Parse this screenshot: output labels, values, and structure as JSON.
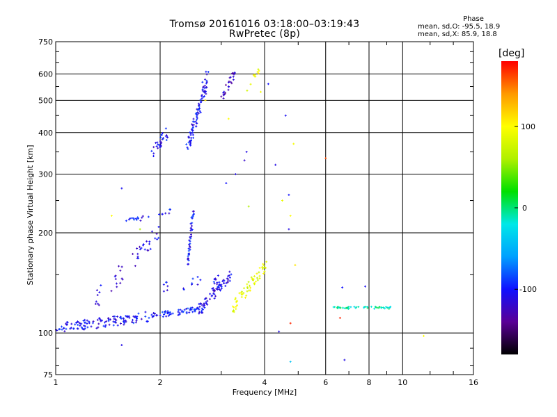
{
  "header": {
    "title_line1": "Tromsø 20161016 03:18:00–03:19:43",
    "title_line2": "RwPretec (8p)"
  },
  "phase_stats": {
    "heading": "Phase",
    "line_o": "mean, sd,O: -95.5, 18.9",
    "line_x": "mean, sd,X:  85.9, 18.8"
  },
  "colorbar": {
    "title": "[deg]",
    "ticks": [
      "100",
      "0",
      "-100"
    ],
    "tick_values": [
      100,
      0,
      -100
    ],
    "range": [
      -180,
      180
    ],
    "colors": [
      "#000000",
      "#5a0096",
      "#1010ff",
      "#00a0ff",
      "#00e8e8",
      "#00e000",
      "#b0f000",
      "#ffff00",
      "#ff9900",
      "#ff0000"
    ]
  },
  "chart_data": {
    "type": "scatter",
    "xlabel": "Frequency [MHz]",
    "ylabel": "Stationary phase Virtual Height [km]",
    "xscale": "log",
    "yscale": "log",
    "xlim": [
      1,
      16
    ],
    "ylim": [
      75,
      750
    ],
    "xticks": [
      1,
      2,
      4,
      6,
      8,
      10,
      16
    ],
    "xtick_labels": [
      "1",
      "2",
      "4",
      "6",
      "8",
      "10",
      "16"
    ],
    "yticks": [
      75,
      100,
      200,
      300,
      400,
      500,
      600,
      750
    ],
    "ytick_labels": [
      "75",
      "100",
      "200",
      "300",
      "400",
      "500",
      "600",
      "750"
    ],
    "grid": true,
    "traces": [
      {
        "f_start": 1.0,
        "f_end": 1.95,
        "h_start": 103,
        "h_end": 113,
        "count": 130,
        "spread": 0.035,
        "phase": -105
      },
      {
        "f_start": 1.95,
        "f_end": 2.6,
        "h_start": 113,
        "h_end": 118,
        "count": 55,
        "spread": 0.02,
        "phase": -98
      },
      {
        "f_start": 2.6,
        "f_end": 3.2,
        "h_start": 118,
        "h_end": 150,
        "count": 70,
        "spread": 0.04,
        "phase": -110
      },
      {
        "f_start": 3.2,
        "f_end": 4.05,
        "h_start": 118,
        "h_end": 160,
        "count": 60,
        "spread": 0.04,
        "phase": 88
      },
      {
        "f_start": 1.25,
        "f_end": 2.0,
        "h_start": 120,
        "h_end": 200,
        "count": 45,
        "spread": 0.06,
        "phase": -112
      },
      {
        "f_start": 1.55,
        "f_end": 1.85,
        "h_start": 218,
        "h_end": 222,
        "count": 14,
        "spread": 0.015,
        "phase": -100
      },
      {
        "f_start": 1.95,
        "f_end": 2.15,
        "h_start": 228,
        "h_end": 232,
        "count": 8,
        "spread": 0.015,
        "phase": -100
      },
      {
        "f_start": 2.4,
        "f_end": 2.5,
        "h_start": 160,
        "h_end": 240,
        "count": 40,
        "spread": 0.03,
        "phase": -102
      },
      {
        "f_start": 1.9,
        "f_end": 2.1,
        "h_start": 350,
        "h_end": 400,
        "count": 30,
        "spread": 0.04,
        "phase": -105
      },
      {
        "f_start": 2.4,
        "f_end": 2.75,
        "h_start": 360,
        "h_end": 600,
        "count": 90,
        "spread": 0.05,
        "phase": -104
      },
      {
        "f_start": 3.0,
        "f_end": 3.3,
        "h_start": 500,
        "h_end": 620,
        "count": 25,
        "spread": 0.03,
        "phase": -125
      },
      {
        "f_start": 3.5,
        "f_end": 3.85,
        "h_start": 540,
        "h_end": 610,
        "count": 10,
        "spread": 0.03,
        "phase": 95
      },
      {
        "f_start": 6.3,
        "f_end": 9.3,
        "h_start": 119,
        "h_end": 119,
        "count": 45,
        "spread": 0.008,
        "phase": -10
      },
      {
        "f_start": 2.0,
        "f_end": 3.1,
        "h_start": 135,
        "h_end": 145,
        "count": 25,
        "spread": 0.05,
        "phase": -105
      }
    ],
    "scattered_points": [
      {
        "f": 1.55,
        "h": 272,
        "phase": -105
      },
      {
        "f": 1.55,
        "h": 92,
        "phase": -110
      },
      {
        "f": 3.1,
        "h": 282,
        "phase": -100
      },
      {
        "f": 3.6,
        "h": 240,
        "phase": 60
      },
      {
        "f": 3.5,
        "h": 330,
        "phase": -120
      },
      {
        "f": 3.55,
        "h": 350,
        "phase": -110
      },
      {
        "f": 4.3,
        "h": 320,
        "phase": -110
      },
      {
        "f": 4.7,
        "h": 260,
        "phase": -100
      },
      {
        "f": 4.7,
        "h": 205,
        "phase": -110
      },
      {
        "f": 4.5,
        "h": 250,
        "phase": 90
      },
      {
        "f": 4.75,
        "h": 225,
        "phase": 100
      },
      {
        "f": 4.85,
        "h": 370,
        "phase": 95
      },
      {
        "f": 4.9,
        "h": 160,
        "phase": 110
      },
      {
        "f": 4.6,
        "h": 450,
        "phase": -105
      },
      {
        "f": 6.0,
        "h": 335,
        "phase": 160
      },
      {
        "f": 4.75,
        "h": 107,
        "phase": 170
      },
      {
        "f": 4.4,
        "h": 101,
        "phase": -110
      },
      {
        "f": 4.75,
        "h": 82,
        "phase": -40
      },
      {
        "f": 6.7,
        "h": 137,
        "phase": -100
      },
      {
        "f": 6.6,
        "h": 111,
        "phase": 170
      },
      {
        "f": 6.8,
        "h": 83,
        "phase": -110
      },
      {
        "f": 7.8,
        "h": 138,
        "phase": -105
      },
      {
        "f": 11.5,
        "h": 98,
        "phase": 100
      },
      {
        "f": 4.1,
        "h": 560,
        "phase": -100
      },
      {
        "f": 3.9,
        "h": 530,
        "phase": 95
      },
      {
        "f": 3.15,
        "h": 440,
        "phase": 100
      },
      {
        "f": 2.7,
        "h": 500,
        "phase": 110
      },
      {
        "f": 3.3,
        "h": 300,
        "phase": -110
      },
      {
        "f": 1.75,
        "h": 205,
        "phase": 60
      },
      {
        "f": 1.45,
        "h": 225,
        "phase": 100
      }
    ]
  }
}
